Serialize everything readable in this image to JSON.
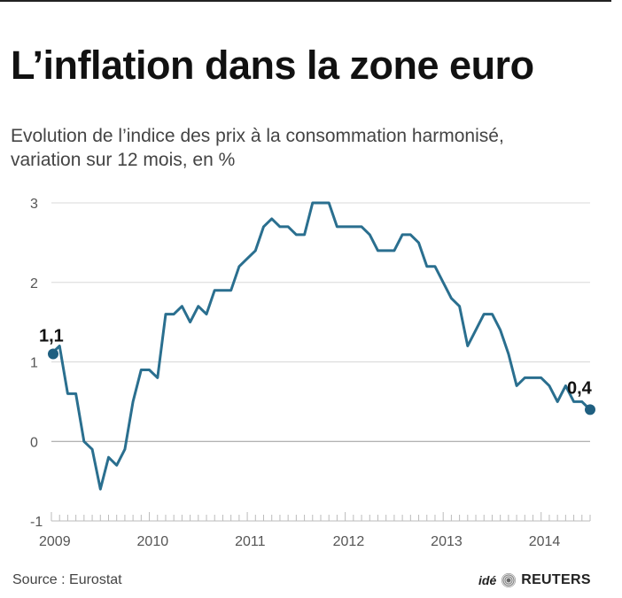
{
  "title": "L’inflation dans la zone euro",
  "subtitle_line1": "Evolution de l’indice des prix à la consommation harmonisé,",
  "subtitle_line2": "variation sur 12 mois, en %",
  "source": "Source : Eurostat",
  "credit": "idé",
  "brand": "REUTERS",
  "icons": [
    "reuters-logo-icon"
  ],
  "chart_data": {
    "type": "line",
    "ylim": [
      -1,
      3
    ],
    "yticks": [
      -1,
      0,
      1,
      2,
      3
    ],
    "yticklabels": [
      "-1",
      "0",
      "1",
      "2",
      "3"
    ],
    "xticklabels": [
      "2009",
      "2010",
      "2011",
      "2012",
      "2013",
      "2014"
    ],
    "grid": true,
    "line_color": "#2a6f8f",
    "start_label": "1,1",
    "end_label": "0,4",
    "series": [
      {
        "values": [
          1.1,
          1.2,
          0.6,
          0.6,
          0.0,
          -0.1,
          -0.6,
          -0.2,
          -0.3,
          -0.1,
          0.5,
          0.9,
          0.9,
          0.8,
          1.6,
          1.6,
          1.7,
          1.5,
          1.7,
          1.6,
          1.9,
          1.9,
          1.9,
          2.2,
          2.3,
          2.4,
          2.7,
          2.8,
          2.7,
          2.7,
          2.6,
          2.6,
          3.0,
          3.0,
          3.0,
          2.7,
          2.7,
          2.7,
          2.7,
          2.6,
          2.4,
          2.4,
          2.4,
          2.6,
          2.6,
          2.5,
          2.2,
          2.2,
          2.0,
          1.8,
          1.7,
          1.2,
          1.4,
          1.6,
          1.6,
          1.4,
          1.1,
          0.7,
          0.8,
          0.8,
          0.8,
          0.7,
          0.5,
          0.7,
          0.5,
          0.5,
          0.4
        ]
      }
    ]
  }
}
